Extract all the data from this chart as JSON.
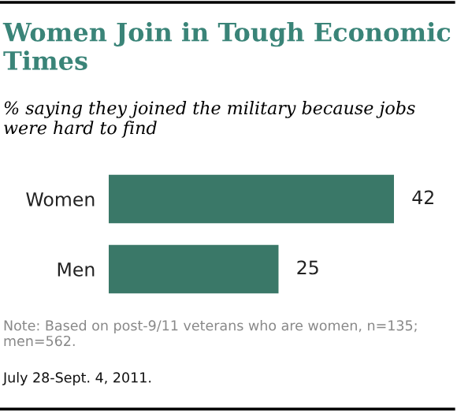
{
  "chart_data": {
    "type": "bar",
    "orientation": "horizontal",
    "title": "Women Join in Tough Economic Times",
    "subtitle": "% saying they joined the military because jobs were hard to find",
    "categories": [
      "Women",
      "Men"
    ],
    "values": [
      42,
      25
    ],
    "color": "#3a7868",
    "data_labels": true,
    "annotations": [
      "Note: Based on post-9/11 veterans who are women, n=135; men=562.",
      "July 28-Sept. 4, 2011."
    ]
  }
}
